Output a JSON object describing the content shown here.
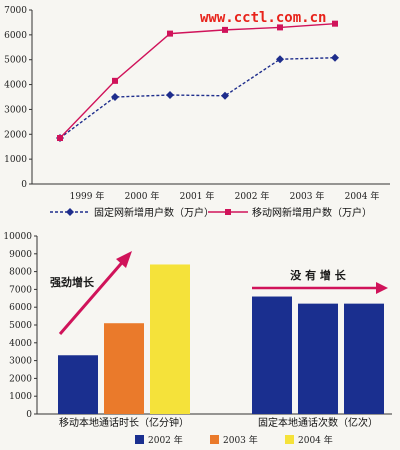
{
  "watermark": "www.cctl.com.cn",
  "chart_data": [
    {
      "type": "line",
      "x": [
        "1999 年",
        "2000 年",
        "2001 年",
        "2002 年",
        "2003 年",
        "2004 年"
      ],
      "ylim": [
        0,
        7000
      ],
      "yticks": [
        0,
        1000,
        2000,
        3000,
        4000,
        5000,
        6000,
        7000
      ],
      "grid": false,
      "legend_position": "bottom",
      "series": [
        {
          "name": "固定网新增用户数（万户）",
          "color": "#1e2d8c",
          "marker": "diamond",
          "dash": true,
          "values": [
            1850,
            3500,
            3580,
            3550,
            5020,
            5080
          ]
        },
        {
          "name": "移动网新增用户数（万户）",
          "color": "#d0135a",
          "marker": "square",
          "dash": false,
          "values": [
            1850,
            4150,
            6050,
            6200,
            6300,
            6450
          ]
        }
      ]
    },
    {
      "type": "bar",
      "ylim": [
        0,
        10000
      ],
      "yticks": [
        0,
        1000,
        2000,
        3000,
        4000,
        5000,
        6000,
        7000,
        8000,
        9000,
        10000
      ],
      "grid": false,
      "legend_position": "bottom",
      "legend": [
        "2002 年",
        "2003 年",
        "2004 年"
      ],
      "colors": [
        "#1a2f8f",
        "#ea7a2b",
        "#f5e23a"
      ],
      "groups": [
        {
          "label": "移动本地通话时长（亿分钟）",
          "annotation": "强劲增长",
          "values": [
            3300,
            5100,
            8400
          ],
          "colors": [
            "#1a2f8f",
            "#ea7a2b",
            "#f5e23a"
          ]
        },
        {
          "label": "固定本地通话次数（亿次）",
          "annotation": "没 有 增 长",
          "values": [
            6600,
            6200,
            6200
          ],
          "colors": [
            "#1a2f8f",
            "#1a2f8f",
            "#1a2f8f"
          ]
        }
      ]
    }
  ]
}
